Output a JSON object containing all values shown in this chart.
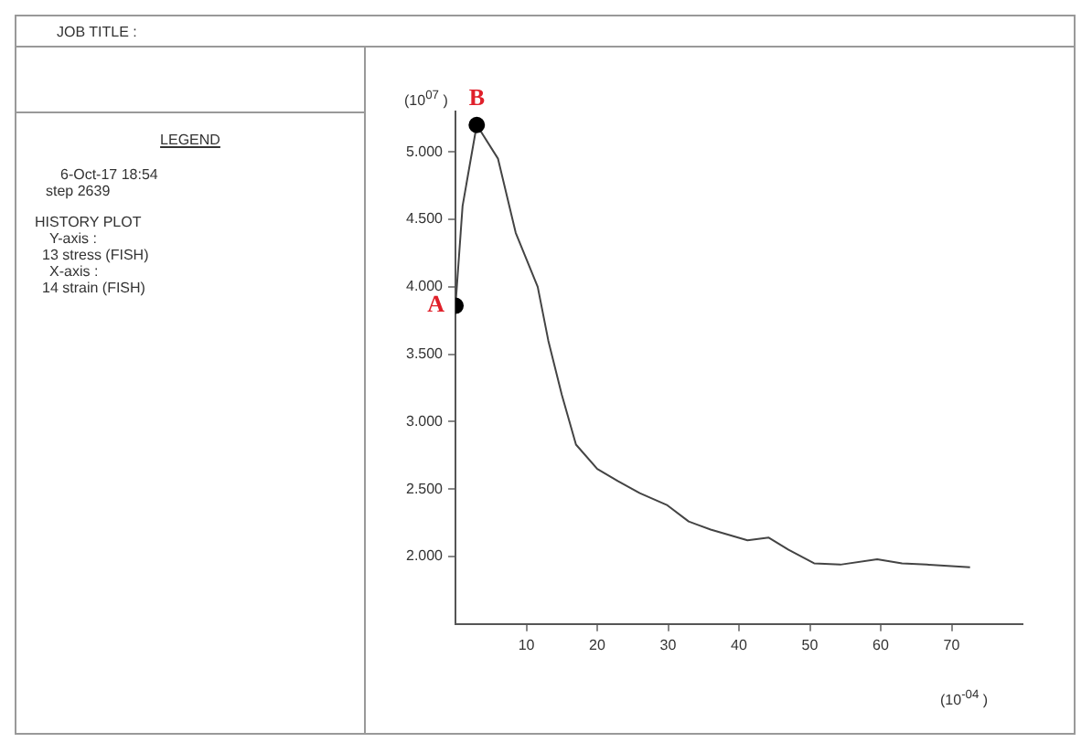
{
  "chart_data": {
    "type": "line",
    "xlabel": "(10$^{-04}$ )",
    "ylabel": "(10$^{07}$ )",
    "xlim": [
      0,
      80
    ],
    "xticks": [
      10,
      20,
      30,
      40,
      50,
      60,
      70
    ],
    "ylim": [
      1.5,
      5.3
    ],
    "yticks": [
      {
        "value": 2.0,
        "label": "2.000"
      },
      {
        "value": 2.5,
        "label": "2.500"
      },
      {
        "value": 3.0,
        "label": "3.000"
      },
      {
        "value": 3.5,
        "label": "3.500"
      },
      {
        "value": 4.0,
        "label": "4.000"
      },
      {
        "value": 4.5,
        "label": "4.500"
      },
      {
        "value": 5.0,
        "label": "5.000"
      }
    ],
    "series": [
      {
        "color": "#444444",
        "marker": "none",
        "x": [
          0,
          1,
          3,
          6,
          8.5,
          11.6,
          13.1,
          15,
          17,
          20,
          22.9,
          26,
          29.9,
          32.9,
          36,
          41.2,
          44.2,
          47,
          50.6,
          54.3,
          59.5,
          63,
          66.5,
          72.6
        ],
        "values": [
          3.86,
          4.6,
          5.2,
          4.95,
          4.4,
          4.0,
          3.6,
          3.2,
          2.83,
          2.65,
          2.56,
          2.47,
          2.38,
          2.26,
          2.2,
          2.12,
          2.14,
          2.05,
          1.95,
          1.94,
          1.98,
          1.95,
          1.94,
          1.92
        ]
      },
      {
        "type": "scatter",
        "color": "#000000",
        "marker": "circle",
        "x": [
          0,
          3
        ],
        "values": [
          3.86,
          5.2
        ]
      }
    ],
    "annotations": [
      "JOB TITLE :",
      "LEGEND",
      "6-Oct-17 18:54",
      "step 2639",
      "HISTORY PLOT",
      "Y-axis :",
      "13 stress (FISH)",
      "X-axis :",
      "14 strain (FISH)",
      {
        "text": "A",
        "x": 0,
        "y": 3.86
      },
      {
        "text": "B",
        "x": 3,
        "y": 5.2
      }
    ]
  }
}
